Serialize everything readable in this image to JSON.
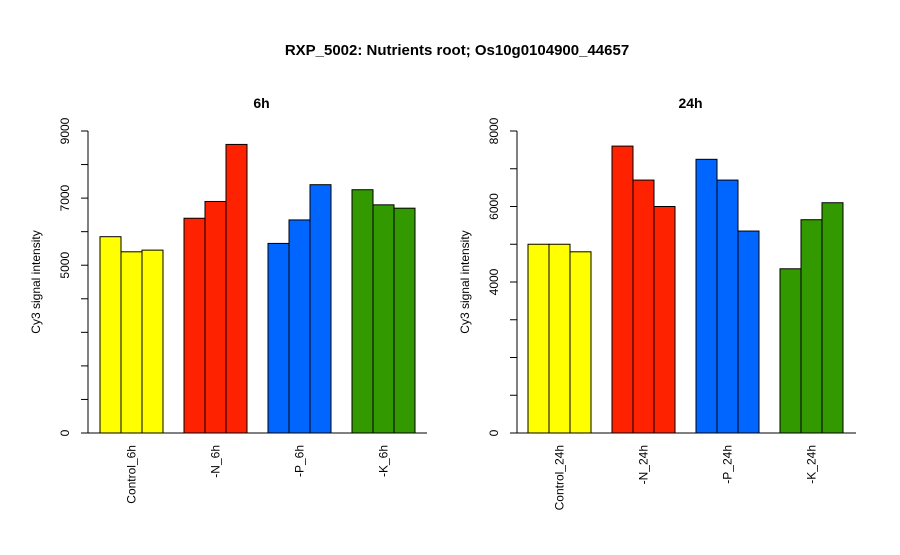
{
  "title": "RXP_5002: Nutrients root; Os10g0104900_44657",
  "colors": {
    "Control": "#FFFF00",
    "-N": "#FF2200",
    "-P": "#0066FF",
    "-K": "#339900"
  },
  "chart_data": [
    {
      "type": "bar",
      "title": "6h",
      "ylabel": "Cy3 signal intensity",
      "ylim": [
        0,
        9000
      ],
      "yticks": [
        0,
        5000,
        7000,
        9000
      ],
      "groups": [
        {
          "label": "Control_6h",
          "color_key": "Control",
          "values": [
            5850,
            5400,
            5450
          ]
        },
        {
          "label": "-N_6h",
          "color_key": "-N",
          "values": [
            6400,
            6900,
            8600
          ]
        },
        {
          "label": "-P_6h",
          "color_key": "-P",
          "values": [
            5650,
            6350,
            7400
          ]
        },
        {
          "label": "-K_6h",
          "color_key": "-K",
          "values": [
            7250,
            6800,
            6700
          ]
        }
      ]
    },
    {
      "type": "bar",
      "title": "24h",
      "ylabel": "Cy3 signal intensity",
      "ylim": [
        0,
        8000
      ],
      "yticks": [
        0,
        4000,
        6000,
        8000
      ],
      "groups": [
        {
          "label": "Control_24h",
          "color_key": "Control",
          "values": [
            5000,
            5000,
            4800
          ]
        },
        {
          "label": "-N_24h",
          "color_key": "-N",
          "values": [
            7600,
            6700,
            6000
          ]
        },
        {
          "label": "-P_24h",
          "color_key": "-P",
          "values": [
            7250,
            6700,
            5350
          ]
        },
        {
          "label": "-K_24h",
          "color_key": "-K",
          "values": [
            4350,
            5650,
            6100
          ]
        }
      ]
    }
  ]
}
